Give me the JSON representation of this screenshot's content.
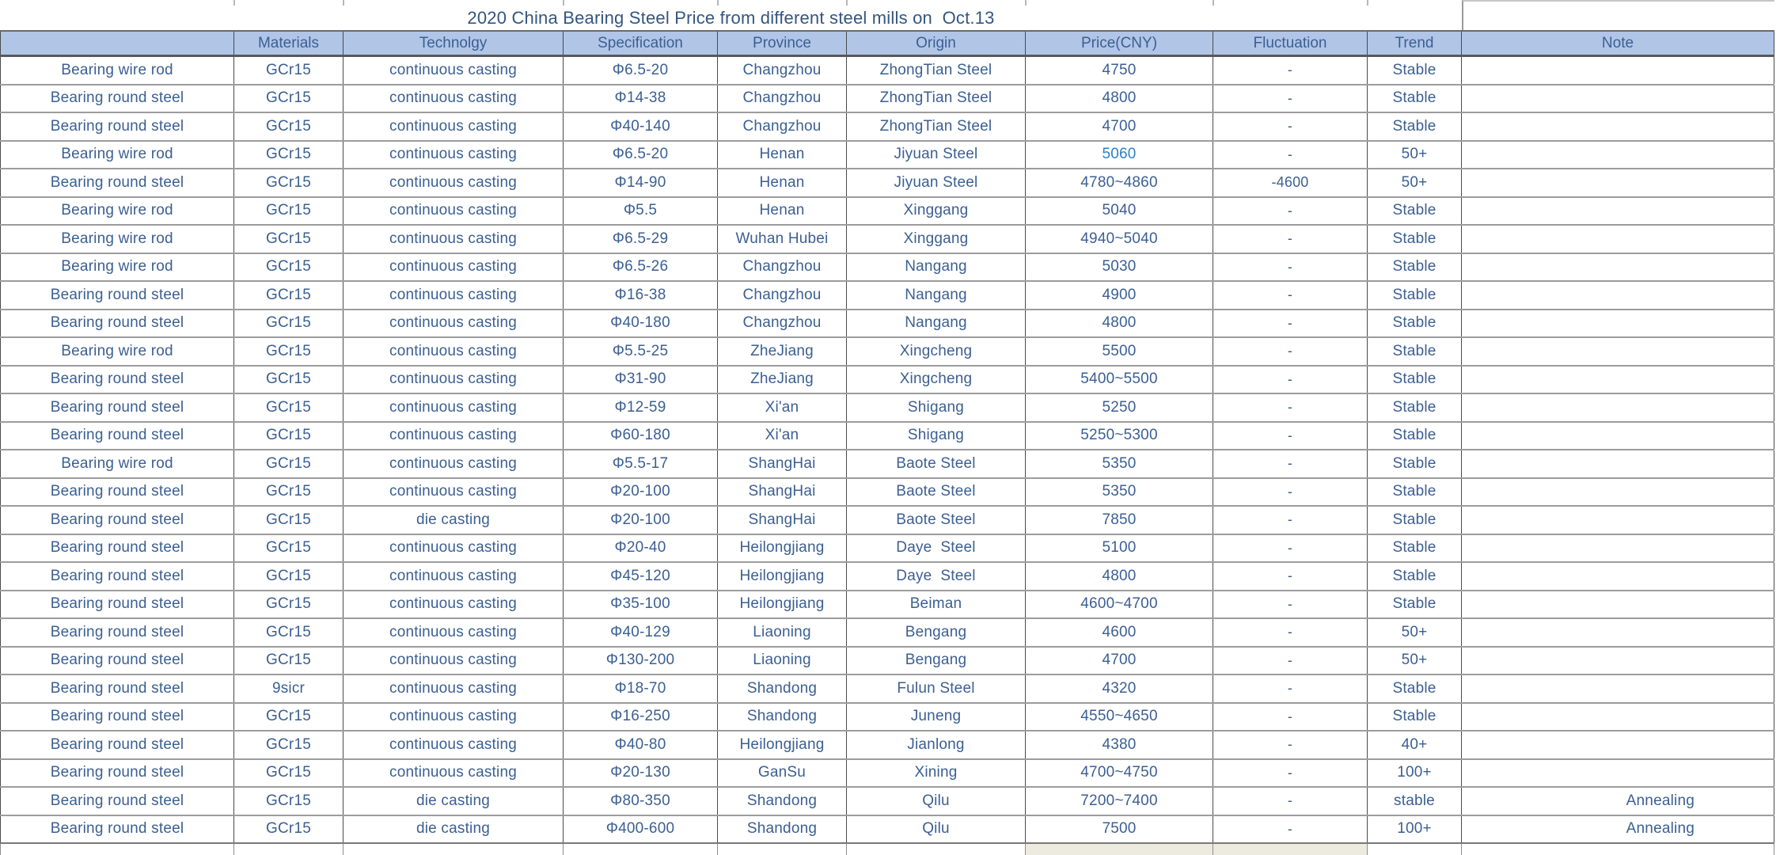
{
  "title": "2020 China Bearing Steel Price from different steel mills on  Oct.13",
  "colors": {
    "header_bg": "#b1c5e7",
    "body_text": "#3b5f92",
    "title_text": "#33567f",
    "highlight_price": "#2a82c8",
    "partial_cell_beige": "#edebe0"
  },
  "column_keys": [
    "product",
    "materials",
    "technology",
    "specification",
    "province",
    "origin",
    "price",
    "fluctuation",
    "trend",
    "note"
  ],
  "columns": [
    "",
    "Materials",
    "Technolgy",
    "Specification",
    "Province",
    "Origin",
    "Price(CNY)",
    "Fluctuation",
    "Trend",
    "Note"
  ],
  "rows": [
    {
      "product": "Bearing wire rod",
      "materials": "GCr15",
      "technology": "continuous casting",
      "specification": "Φ6.5-20",
      "province": "Changzhou",
      "origin": "ZhongTian Steel",
      "price": "4750",
      "fluctuation": "-",
      "trend": "Stable",
      "note": "",
      "highlight": false
    },
    {
      "product": "Bearing round steel",
      "materials": "GCr15",
      "technology": "continuous casting",
      "specification": "Φ14-38",
      "province": "Changzhou",
      "origin": "ZhongTian Steel",
      "price": "4800",
      "fluctuation": "-",
      "trend": "Stable",
      "note": "",
      "highlight": false
    },
    {
      "product": "Bearing round steel",
      "materials": "GCr15",
      "technology": "continuous casting",
      "specification": "Φ40-140",
      "province": "Changzhou",
      "origin": "ZhongTian Steel",
      "price": "4700",
      "fluctuation": "-",
      "trend": "Stable",
      "note": "",
      "highlight": false
    },
    {
      "product": "Bearing wire rod",
      "materials": "GCr15",
      "technology": "continuous casting",
      "specification": "Φ6.5-20",
      "province": "Henan",
      "origin": "Jiyuan Steel",
      "price": "5060",
      "fluctuation": "-",
      "trend": "50+",
      "note": "",
      "highlight": true
    },
    {
      "product": "Bearing round steel",
      "materials": "GCr15",
      "technology": "continuous casting",
      "specification": "Φ14-90",
      "province": "Henan",
      "origin": "Jiyuan Steel",
      "price": "4780~4860",
      "fluctuation": "-4600",
      "trend": "50+",
      "note": "",
      "highlight": false
    },
    {
      "product": "Bearing wire rod",
      "materials": "GCr15",
      "technology": "continuous casting",
      "specification": "Φ5.5",
      "province": "Henan",
      "origin": "Xinggang",
      "price": "5040",
      "fluctuation": "-",
      "trend": "Stable",
      "note": "",
      "highlight": false
    },
    {
      "product": "Bearing wire rod",
      "materials": "GCr15",
      "technology": "continuous casting",
      "specification": "Φ6.5-29",
      "province": "Wuhan Hubei",
      "origin": "Xinggang",
      "price": "4940~5040",
      "fluctuation": "-",
      "trend": "Stable",
      "note": "",
      "highlight": false
    },
    {
      "product": "Bearing wire rod",
      "materials": "GCr15",
      "technology": "continuous casting",
      "specification": "Φ6.5-26",
      "province": "Changzhou",
      "origin": "Nangang",
      "price": "5030",
      "fluctuation": "-",
      "trend": "Stable",
      "note": "",
      "highlight": false
    },
    {
      "product": "Bearing round steel",
      "materials": "GCr15",
      "technology": "continuous casting",
      "specification": "Φ16-38",
      "province": "Changzhou",
      "origin": "Nangang",
      "price": "4900",
      "fluctuation": "-",
      "trend": "Stable",
      "note": "",
      "highlight": false
    },
    {
      "product": "Bearing round steel",
      "materials": "GCr15",
      "technology": "continuous casting",
      "specification": "Φ40-180",
      "province": "Changzhou",
      "origin": "Nangang",
      "price": "4800",
      "fluctuation": "-",
      "trend": "Stable",
      "note": "",
      "highlight": false
    },
    {
      "product": "Bearing wire rod",
      "materials": "GCr15",
      "technology": "continuous casting",
      "specification": "Φ5.5-25",
      "province": "ZheJiang",
      "origin": "Xingcheng",
      "price": "5500",
      "fluctuation": "-",
      "trend": "Stable",
      "note": "",
      "highlight": false
    },
    {
      "product": "Bearing round steel",
      "materials": "GCr15",
      "technology": "continuous casting",
      "specification": "Φ31-90",
      "province": "ZheJiang",
      "origin": "Xingcheng",
      "price": "5400~5500",
      "fluctuation": "-",
      "trend": "Stable",
      "note": "",
      "highlight": false
    },
    {
      "product": "Bearing round steel",
      "materials": "GCr15",
      "technology": "continuous casting",
      "specification": "Φ12-59",
      "province": "Xi'an",
      "origin": "Shigang",
      "price": "5250",
      "fluctuation": "-",
      "trend": "Stable",
      "note": "",
      "highlight": false
    },
    {
      "product": "Bearing round steel",
      "materials": "GCr15",
      "technology": "continuous casting",
      "specification": "Φ60-180",
      "province": "Xi'an",
      "origin": "Shigang",
      "price": "5250~5300",
      "fluctuation": "-",
      "trend": "Stable",
      "note": "",
      "highlight": false
    },
    {
      "product": "Bearing wire rod",
      "materials": "GCr15",
      "technology": "continuous casting",
      "specification": "Φ5.5-17",
      "province": "ShangHai",
      "origin": "Baote Steel",
      "price": "5350",
      "fluctuation": "-",
      "trend": "Stable",
      "note": "",
      "highlight": false
    },
    {
      "product": "Bearing round steel",
      "materials": "GCr15",
      "technology": "continuous casting",
      "specification": "Φ20-100",
      "province": "ShangHai",
      "origin": "Baote Steel",
      "price": "5350",
      "fluctuation": "-",
      "trend": "Stable",
      "note": "",
      "highlight": false
    },
    {
      "product": "Bearing round steel",
      "materials": "GCr15",
      "technology": "die casting",
      "specification": "Φ20-100",
      "province": "ShangHai",
      "origin": "Baote Steel",
      "price": "7850",
      "fluctuation": "-",
      "trend": "Stable",
      "note": "",
      "highlight": false
    },
    {
      "product": "Bearing round steel",
      "materials": "GCr15",
      "technology": "continuous casting",
      "specification": "Φ20-40",
      "province": "Heilongjiang",
      "origin": "Daye  Steel",
      "price": "5100",
      "fluctuation": "-",
      "trend": "Stable",
      "note": "",
      "highlight": false
    },
    {
      "product": "Bearing round steel",
      "materials": "GCr15",
      "technology": "continuous casting",
      "specification": "Φ45-120",
      "province": "Heilongjiang",
      "origin": "Daye  Steel",
      "price": "4800",
      "fluctuation": "-",
      "trend": "Stable",
      "note": "",
      "highlight": false
    },
    {
      "product": "Bearing round steel",
      "materials": "GCr15",
      "technology": "continuous casting",
      "specification": "Φ35-100",
      "province": "Heilongjiang",
      "origin": "Beiman",
      "price": "4600~4700",
      "fluctuation": "-",
      "trend": "Stable",
      "note": "",
      "highlight": false
    },
    {
      "product": "Bearing round steel",
      "materials": "GCr15",
      "technology": "continuous casting",
      "specification": "Φ40-129",
      "province": "Liaoning",
      "origin": "Bengang",
      "price": "4600",
      "fluctuation": "-",
      "trend": "50+",
      "note": "",
      "highlight": false
    },
    {
      "product": "Bearing round steel",
      "materials": "GCr15",
      "technology": "continuous casting",
      "specification": "Φ130-200",
      "province": "Liaoning",
      "origin": "Bengang",
      "price": "4700",
      "fluctuation": "-",
      "trend": "50+",
      "note": "",
      "highlight": false
    },
    {
      "product": "Bearing round steel",
      "materials": "9sicr",
      "technology": "continuous casting",
      "specification": "Φ18-70",
      "province": "Shandong",
      "origin": "Fulun Steel",
      "price": "4320",
      "fluctuation": "-",
      "trend": "Stable",
      "note": "",
      "highlight": false
    },
    {
      "product": "Bearing round steel",
      "materials": "GCr15",
      "technology": "continuous casting",
      "specification": "Φ16-250",
      "province": "Shandong",
      "origin": "Juneng",
      "price": "4550~4650",
      "fluctuation": "-",
      "trend": "Stable",
      "note": "",
      "highlight": false
    },
    {
      "product": "Bearing round steel",
      "materials": "GCr15",
      "technology": "continuous casting",
      "specification": "Φ40-80",
      "province": "Heilongjiang",
      "origin": "Jianlong",
      "price": "4380",
      "fluctuation": "-",
      "trend": "40+",
      "note": "",
      "highlight": false
    },
    {
      "product": "Bearing round steel",
      "materials": "GCr15",
      "technology": "continuous casting",
      "specification": "Φ20-130",
      "province": "GanSu",
      "origin": "Xining",
      "price": "4700~4750",
      "fluctuation": "-",
      "trend": "100+",
      "note": "",
      "highlight": false
    },
    {
      "product": "Bearing round steel",
      "materials": "GCr15",
      "technology": "die casting",
      "specification": "Φ80-350",
      "province": "Shandong",
      "origin": "Qilu",
      "price": "7200~7400",
      "fluctuation": "-",
      "trend": "stable",
      "note": "Annealing",
      "highlight": false
    },
    {
      "product": "Bearing round steel",
      "materials": "GCr15",
      "technology": "die casting",
      "specification": "Φ400-600",
      "province": "Shandong",
      "origin": "Qilu",
      "price": "7500",
      "fluctuation": "-",
      "trend": "100+",
      "note": "Annealing",
      "highlight": false
    }
  ],
  "bottom_strip": {
    "highlight_columns": [
      "price",
      "fluctuation"
    ]
  }
}
